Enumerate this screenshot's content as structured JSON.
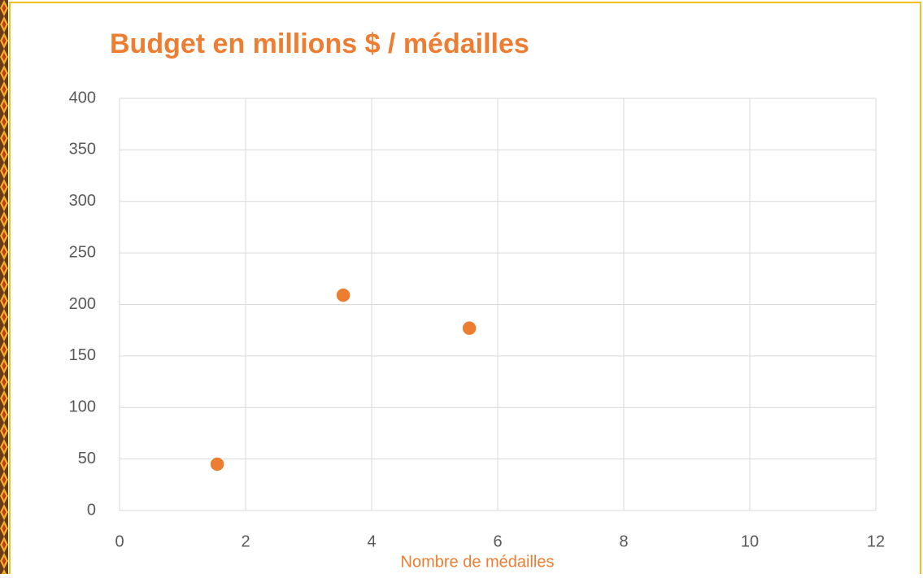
{
  "chart_data": {
    "type": "scatter",
    "title": "Budget en millions $ / médailles",
    "x_label": "Nombre de médailles",
    "series": [
      {
        "color": "#ed7d31",
        "x": [
          1.55,
          3.55,
          5.55
        ],
        "values": [
          45,
          209,
          177
        ]
      }
    ],
    "xlim": [
      0,
      12
    ],
    "xticks": [
      0,
      2,
      4,
      6,
      8,
      10,
      12
    ],
    "ylim": [
      0,
      400
    ],
    "yticks": [
      0,
      50,
      100,
      150,
      200,
      250,
      300,
      350,
      400
    ],
    "grid": true
  }
}
